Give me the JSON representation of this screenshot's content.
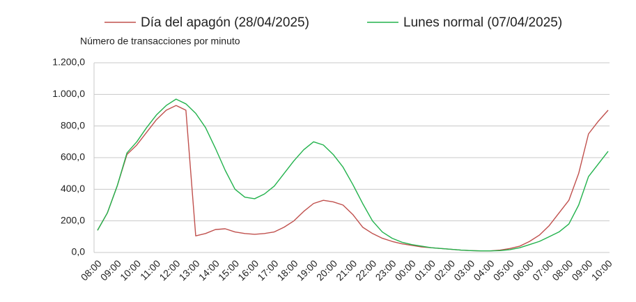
{
  "chart_data": {
    "type": "line",
    "ylabel": "Número de transacciones por minuto",
    "categories": [
      "08:00",
      null,
      "09:00",
      null,
      "10:00",
      null,
      "11:00",
      null,
      "12:00",
      null,
      "13:00",
      null,
      "14:00",
      null,
      "15:00",
      null,
      "16:00",
      null,
      "17:00",
      null,
      "18:00",
      null,
      "19:00",
      null,
      "20:00",
      null,
      "21:00",
      null,
      "22:00",
      null,
      "23:00",
      null,
      "00:00",
      null,
      "01:00",
      null,
      "02:00",
      null,
      "03:00",
      null,
      "04:00",
      null,
      "05:00",
      null,
      "06:00",
      null,
      "07:00",
      null,
      "08:00",
      null,
      "09:00",
      null,
      "10:00"
    ],
    "series": [
      {
        "name": "Día del apagón (28/04/2025)",
        "color": "#c0504d",
        "values": [
          140,
          250,
          420,
          620,
          680,
          760,
          840,
          900,
          930,
          900,
          105,
          120,
          145,
          150,
          130,
          120,
          115,
          120,
          130,
          160,
          200,
          260,
          310,
          330,
          320,
          300,
          240,
          160,
          120,
          90,
          70,
          55,
          45,
          35,
          30,
          25,
          20,
          15,
          12,
          10,
          10,
          15,
          25,
          40,
          70,
          110,
          170,
          250,
          330,
          500,
          750,
          830,
          900
        ]
      },
      {
        "name": "Lunes normal (07/04/2025)",
        "color": "#22b24c",
        "values": [
          140,
          250,
          420,
          630,
          700,
          790,
          870,
          930,
          970,
          940,
          880,
          790,
          660,
          520,
          400,
          350,
          340,
          370,
          420,
          500,
          580,
          650,
          700,
          680,
          620,
          540,
          430,
          310,
          200,
          130,
          90,
          65,
          50,
          40,
          30,
          25,
          20,
          15,
          12,
          10,
          10,
          12,
          18,
          30,
          50,
          70,
          100,
          130,
          180,
          300,
          480,
          560,
          640
        ]
      }
    ],
    "ylim": [
      0,
      1200
    ],
    "yticks": [
      {
        "value": 0,
        "label": "0,0"
      },
      {
        "value": 200,
        "label": "200,0"
      },
      {
        "value": 400,
        "label": "400,0"
      },
      {
        "value": 600,
        "label": "600,0"
      },
      {
        "value": 800,
        "label": "800,0"
      },
      {
        "value": 1000,
        "label": "1.000,0"
      },
      {
        "value": 1200,
        "label": "1.200,0"
      }
    ],
    "grid": true,
    "legend": "top"
  }
}
